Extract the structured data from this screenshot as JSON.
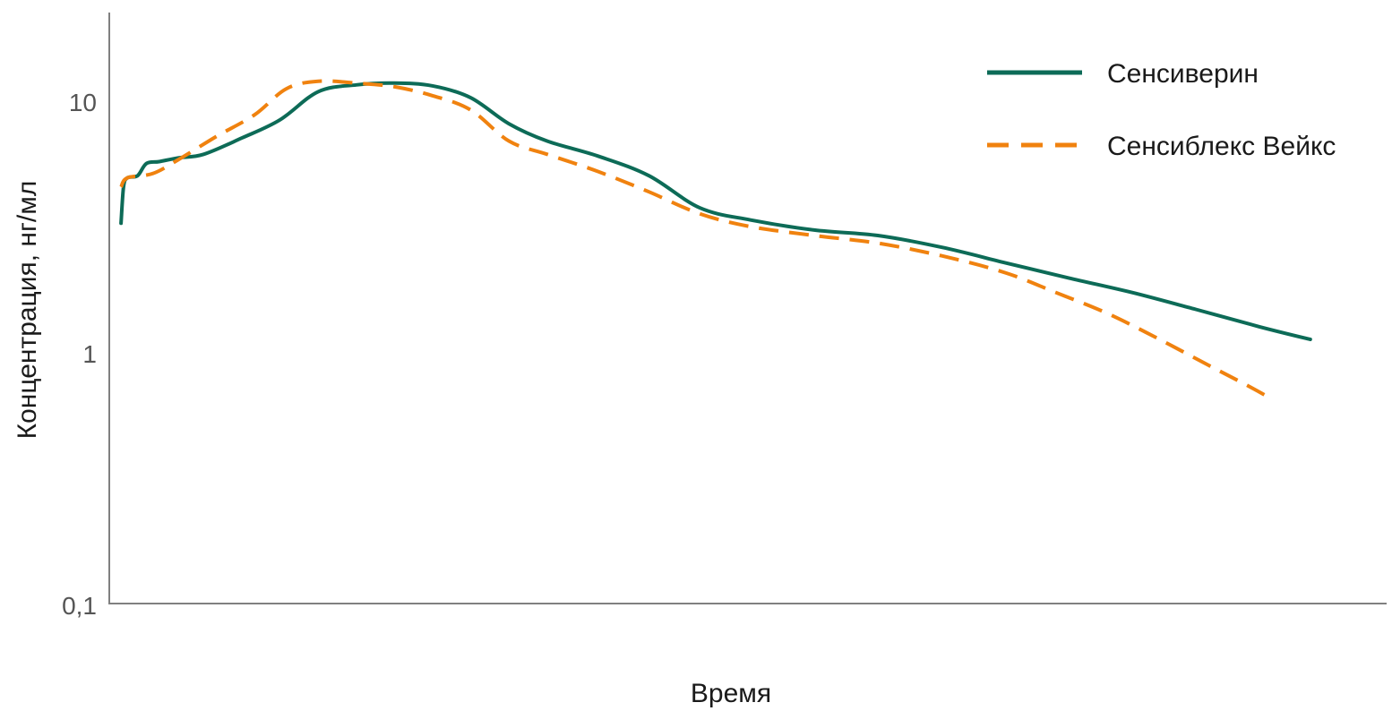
{
  "chart_data": {
    "type": "line",
    "title": "",
    "xlabel": "Время",
    "ylabel": "Концентрация, нг/мл",
    "yscale": "log",
    "ylim": [
      0.1,
      20
    ],
    "xlim": [
      0,
      100
    ],
    "x_ticks_shown": false,
    "grid": false,
    "y_tick_labels": [
      "10",
      "1",
      "0,1"
    ],
    "y_tick_values": [
      10,
      1,
      0.1
    ],
    "legend": {
      "position": "top-right"
    },
    "series": [
      {
        "name": "Сенсиверин",
        "color": "#0d6b57",
        "style": "solid",
        "points": [
          [
            0.5,
            3.3
          ],
          [
            0.7,
            4.6
          ],
          [
            1.0,
            5.0
          ],
          [
            1.8,
            5.1
          ],
          [
            2.5,
            5.7
          ],
          [
            3.5,
            5.8
          ],
          [
            5.0,
            6.0
          ],
          [
            7.0,
            6.2
          ],
          [
            10.0,
            7.2
          ],
          [
            13.0,
            8.5
          ],
          [
            16.0,
            11.0
          ],
          [
            19.0,
            11.7
          ],
          [
            22.0,
            11.9
          ],
          [
            25.0,
            11.6
          ],
          [
            28.0,
            10.4
          ],
          [
            31.0,
            8.2
          ],
          [
            34.0,
            7.0
          ],
          [
            38.0,
            6.1
          ],
          [
            42.0,
            5.1
          ],
          [
            46.0,
            3.8
          ],
          [
            50.0,
            3.4
          ],
          [
            55.0,
            3.1
          ],
          [
            60.0,
            2.95
          ],
          [
            65.0,
            2.65
          ],
          [
            70.0,
            2.3
          ],
          [
            75.0,
            2.0
          ],
          [
            80.0,
            1.75
          ],
          [
            85.0,
            1.5
          ],
          [
            90.0,
            1.28
          ],
          [
            94.0,
            1.14
          ]
        ]
      },
      {
        "name": "Сенсиблекс Вейкс",
        "color": "#f0820f",
        "style": "dashed",
        "points": [
          [
            0.5,
            4.6
          ],
          [
            1.0,
            5.0
          ],
          [
            3.0,
            5.2
          ],
          [
            5.0,
            5.9
          ],
          [
            8.0,
            7.3
          ],
          [
            11.0,
            8.9
          ],
          [
            13.5,
            11.3
          ],
          [
            16.0,
            12.1
          ],
          [
            19.0,
            11.9
          ],
          [
            22.0,
            11.5
          ],
          [
            25.0,
            10.6
          ],
          [
            28.0,
            9.3
          ],
          [
            31.0,
            7.0
          ],
          [
            34.0,
            6.2
          ],
          [
            38.0,
            5.3
          ],
          [
            42.0,
            4.4
          ],
          [
            46.0,
            3.6
          ],
          [
            50.0,
            3.2
          ],
          [
            55.0,
            2.95
          ],
          [
            60.0,
            2.75
          ],
          [
            65.0,
            2.45
          ],
          [
            70.0,
            2.1
          ],
          [
            74.0,
            1.75
          ],
          [
            78.0,
            1.45
          ],
          [
            82.0,
            1.15
          ],
          [
            86.0,
            0.9
          ],
          [
            89.0,
            0.75
          ],
          [
            91.0,
            0.66
          ]
        ]
      }
    ]
  }
}
